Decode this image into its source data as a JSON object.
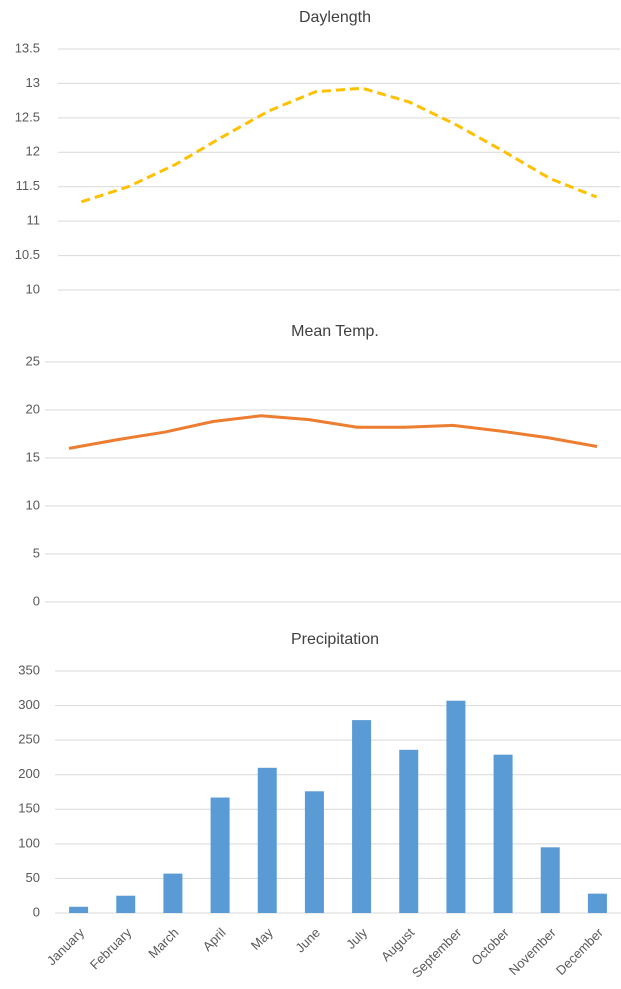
{
  "chart_data": [
    {
      "type": "line",
      "title": "Daylength",
      "line_style": "dashed",
      "color": "#FFC000",
      "grid": true,
      "values": [
        11.28,
        11.5,
        11.82,
        12.22,
        12.6,
        12.88,
        12.93,
        12.73,
        12.4,
        12.02,
        11.62,
        11.35
      ],
      "ylim": [
        10,
        13.5
      ],
      "yticks": [
        10,
        10.5,
        11,
        11.5,
        12,
        12.5,
        13,
        13.5
      ]
    },
    {
      "type": "line",
      "title": "Mean Temp.",
      "line_style": "solid",
      "color": "#ED7D31",
      "grid": true,
      "values": [
        16,
        16.9,
        17.7,
        18.8,
        19.4,
        19,
        18.2,
        18.2,
        18.4,
        17.8,
        17.1,
        16.2
      ],
      "ylim": [
        0,
        25
      ],
      "yticks": [
        0,
        5,
        10,
        15,
        20,
        25
      ]
    },
    {
      "type": "bar",
      "title": "Precipitation",
      "color": "#5B9BD5",
      "grid": true,
      "categories": [
        "January",
        "February",
        "March",
        "April",
        "May",
        "June",
        "July",
        "August",
        "September",
        "October",
        "November",
        "December"
      ],
      "values": [
        9,
        25,
        57,
        167,
        210,
        176,
        279,
        236,
        307,
        229,
        95,
        28
      ],
      "ylim": [
        0,
        350
      ],
      "yticks": [
        0,
        50,
        100,
        150,
        200,
        250,
        300,
        350
      ]
    }
  ]
}
